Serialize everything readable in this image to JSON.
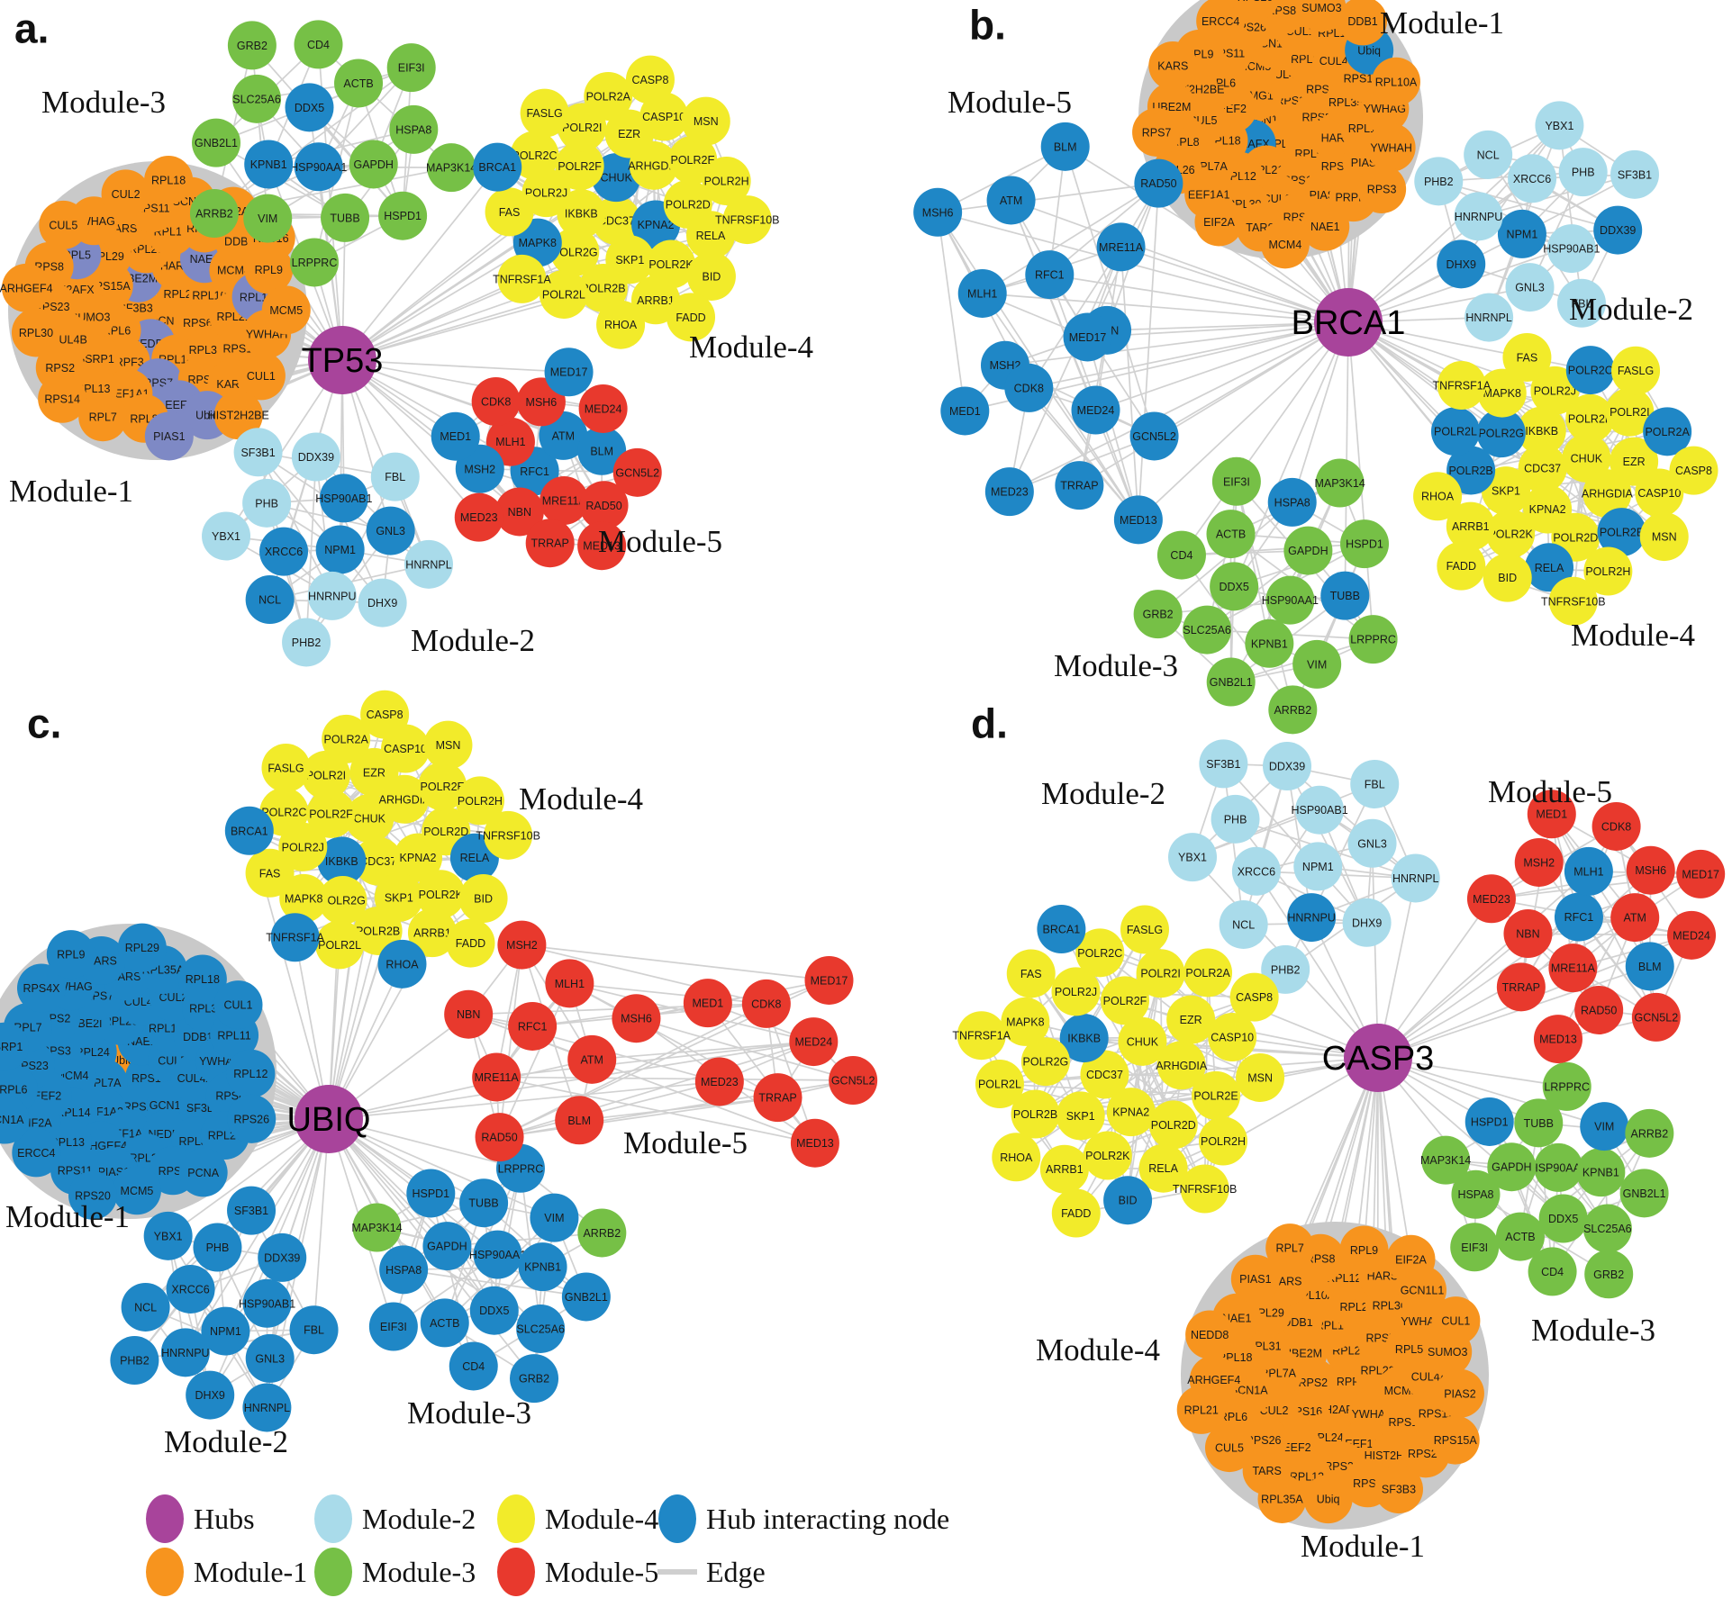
{
  "colors": {
    "hub": "#A8449B",
    "module1": "#F7941E",
    "module2": "#A9DBEA",
    "module3": "#76C046",
    "module4": "#F2EB2A",
    "module5": "#E8392D",
    "hub_interacting": "#1F87C6",
    "hub_interacting_muted": "#7E89C5",
    "edge": "#CFCFCF"
  },
  "legend": {
    "items": [
      {
        "label": "Hubs",
        "color_key": "hub",
        "swatch": "circle"
      },
      {
        "label": "Module-1",
        "color_key": "module1",
        "swatch": "circle"
      },
      {
        "label": "Module-2",
        "color_key": "module2",
        "swatch": "circle"
      },
      {
        "label": "Module-3",
        "color_key": "module3",
        "swatch": "circle"
      },
      {
        "label": "Module-4",
        "color_key": "module4",
        "swatch": "circle"
      },
      {
        "label": "Module-5",
        "color_key": "module5",
        "swatch": "circle"
      },
      {
        "label": "Hub interacting node",
        "color_key": "hub_interacting",
        "swatch": "circle"
      },
      {
        "label": "Edge",
        "color_key": "edge",
        "swatch": "line"
      }
    ]
  },
  "panels": [
    {
      "id": "a",
      "letter": "a.",
      "hub": {
        "label": "TP53"
      },
      "modules": [
        {
          "name": "Module-1",
          "color_key": "module1",
          "nodes": [
            "PCNA",
            "SF3B3",
            "RPL23",
            "NEDD8",
            "UBE2M",
            "RPS6",
            "RPL6",
            "HARS",
            "RPL14",
            "RPS15A",
            "RPL10A",
            "PRPF3",
            "RPL26",
            "RPL35A",
            "SUMO3",
            "NAE1",
            "RPS7",
            "RPL29",
            "RPL21",
            "SSRP1",
            "RPL12",
            "RPS3",
            "H2AFX",
            "MCM4",
            "EEF1A1",
            "TARS",
            "RPS13",
            "CUL4B",
            "RPS20",
            "EEF2",
            "RPL5",
            "RPL11",
            "RPL13",
            "RPS11",
            "KARS",
            "RPS23",
            "DDB1",
            "RPL8",
            "YWHAG",
            "YWHAH",
            "RPS2",
            "SCN1A",
            "Ubiq",
            "RPS8",
            "RPL9",
            "RPL7",
            "CUL2",
            "CUL1",
            "RPL30",
            "EIF2A",
            "PIAS1",
            "CUL5",
            "MCM5",
            "RPS14",
            "RPL18",
            "HIST2H2BE",
            "ARHGEF4",
            "RPS16"
          ],
          "accent": {
            "color_key": "hub_interacting_muted",
            "nodes": [
              "RPL11",
              "RPL5",
              "EEF2",
              "UBE2M",
              "NEDD8",
              "RPS7",
              "NAE1",
              "Ubiq",
              "PIAS1"
            ]
          }
        },
        {
          "name": "Module-2",
          "color_key": "module2",
          "nodes": [
            "NPM1",
            "XRCC6",
            "HSP90AB1",
            "HNRNPU",
            "PHB",
            "GNL3",
            "NCL",
            "DDX39",
            "DHX9",
            "YBX1",
            "FBL",
            "PHB2",
            "SF3B1",
            "HNRNPL"
          ],
          "accent": {
            "color_key": "hub_interacting",
            "nodes": [
              "XRCC6",
              "NPM1",
              "HSP90AB1",
              "GNL3",
              "NCL"
            ]
          }
        },
        {
          "name": "Module-3",
          "color_key": "module3",
          "nodes": [
            "HSP90AA1",
            "DDX5",
            "GAPDH",
            "KPNB1",
            "ACTB",
            "TUBB",
            "SLC25A6",
            "HSPA8",
            "VIM",
            "CD4",
            "HSPD1",
            "GNB2L1",
            "EIF3I",
            "LRPPRC",
            "GRB2",
            "MAP3K14",
            "ARRB2"
          ],
          "accent": {
            "color_key": "hub_interacting",
            "nodes": [
              "DDX5",
              "KPNB1",
              "HSP90AA1"
            ]
          }
        },
        {
          "name": "Module-4",
          "color_key": "module4",
          "nodes": [
            "CDC37",
            "CHUK",
            "KPNA2",
            "IKBKB",
            "ARHGDIA",
            "SKP1",
            "POLR2F",
            "POLR2D",
            "POLR2G",
            "EZR",
            "POLR2K",
            "POLR2J",
            "POLR2E",
            "POLR2B",
            "POLR2I",
            "RELA",
            "MAPK8",
            "CASP10",
            "ARRB1",
            "POLR2C",
            "POLR2H",
            "POLR2L",
            "POLR2A",
            "BID",
            "FAS",
            "MSN",
            "RHOA",
            "FASLG",
            "TNFRSF10B",
            "TNFRSF1A",
            "CASP8",
            "FADD",
            "BRCA1"
          ],
          "accent": {
            "color_key": "hub_interacting",
            "nodes": [
              "KPNA2",
              "CHUK",
              "MAPK8",
              "BRCA1"
            ]
          }
        },
        {
          "name": "Module-5",
          "color_key": "module5",
          "nodes": [
            "RFC1",
            "ATM",
            "MRE11A",
            "MLH1",
            "BLM",
            "NBN",
            "MSH6",
            "RAD50",
            "MSH2",
            "MED24",
            "TRRAP",
            "CDK8",
            "GCN5L2",
            "MED23",
            "MED17",
            "MED13",
            "MED1"
          ],
          "accent": {
            "color_key": "hub_interacting",
            "nodes": [
              "MSH2",
              "MED17",
              "MED1",
              "RFC1",
              "BLM",
              "ATM"
            ]
          }
        }
      ]
    },
    {
      "id": "b",
      "letter": "b.",
      "hub": {
        "label": "BRCA1"
      },
      "modules": [
        {
          "name": "Module-1",
          "color_key": "module1",
          "nodes": [
            "GCN1L1",
            "RPS14",
            "RPL14",
            "EMG1",
            "RPS2",
            "H2AFX",
            "CUL4B",
            "RPL5",
            "EEF2",
            "RPS4X",
            "RPL21",
            "MCM5",
            "HARS",
            "RPL18",
            "RPL23",
            "RPS13",
            "RPL6",
            "RPL35A",
            "RPL12",
            "SCN1A",
            "RPS23",
            "CUL5",
            "CUL4A",
            "CUL3",
            "RPS11",
            "RPL11",
            "RPL7A",
            "CUL1",
            "PIAS1",
            "HIST2H2BE",
            "RPS15A",
            "RPL30",
            "RPS26",
            "PIAS2",
            "RPL8",
            "RPL13",
            "RPS6",
            "RPL9",
            "YWHAG",
            "EEF1A1",
            "RPS8",
            "PRPF3",
            "UBE2M",
            "Ubiq",
            "TARS",
            "ERCC4",
            "YWHAH",
            "RPL26",
            "SUMO3",
            "NAE1",
            "KARS",
            "RPL10A",
            "EIF2A",
            "RPS20",
            "RPS3",
            "RPS7",
            "DDB1",
            "MCM4"
          ],
          "accent": {
            "color_key": "hub_interacting",
            "nodes": [
              "H2AFX",
              "Ubiq"
            ]
          }
        },
        {
          "name": "Module-2",
          "color_key": "module2",
          "nodes": [
            "NPM1",
            "XRCC6",
            "HSP90AB1",
            "HNRNPU",
            "PHB",
            "GNL3",
            "NCL",
            "DDX39",
            "DHX9",
            "YBX1",
            "FBL",
            "PHB2",
            "SF3B1",
            "HNRNPL"
          ],
          "accent": {
            "color_key": "hub_interacting",
            "nodes": [
              "NPM1",
              "DHX9",
              "DDX39"
            ]
          }
        },
        {
          "name": "Module-3",
          "color_key": "module3",
          "nodes": [
            "HSP90AA1",
            "DDX5",
            "GAPDH",
            "KPNB1",
            "ACTB",
            "TUBB",
            "SLC25A6",
            "HSPA8",
            "VIM",
            "CD4",
            "HSPD1",
            "GNB2L1",
            "EIF3I",
            "LRPPRC",
            "GRB2",
            "MAP3K14",
            "ARRB2"
          ],
          "accent": {
            "color_key": "hub_interacting",
            "nodes": [
              "TUBB",
              "HSPA8"
            ]
          }
        },
        {
          "name": "Module-4",
          "color_key": "module4",
          "nodes": [
            "CDC37",
            "CHUK",
            "KPNA2",
            "IKBKB",
            "ARHGDIA",
            "SKP1",
            "POLR2F",
            "POLR2D",
            "POLR2G",
            "EZR",
            "POLR2K",
            "POLR2J",
            "POLR2E",
            "POLR2B",
            "POLR2I",
            "RELA",
            "MAPK8",
            "CASP10",
            "ARRB1",
            "POLR2C",
            "POLR2H",
            "POLR2L",
            "POLR2A",
            "BID",
            "FAS",
            "MSN",
            "RHOA",
            "FASLG",
            "TNFRSF10B",
            "TNFRSF1A",
            "CASP8",
            "FADD"
          ],
          "accent": {
            "color_key": "hub_interacting",
            "nodes": [
              "POLR2A",
              "POLR2B",
              "POLR2C",
              "POLR2L",
              "POLR2E",
              "POLR2G",
              "RELA"
            ]
          }
        },
        {
          "name": "Module-5",
          "color_key": "hub_interacting",
          "nodes": [
            "RFC1",
            "ATM",
            "MRE11A",
            "MLH1",
            "BLM",
            "NBN",
            "MSH6",
            "RAD50",
            "MSH2",
            "MED24",
            "TRRAP",
            "CDK8",
            "GCN5L2",
            "MED23",
            "MED17",
            "MED13",
            "MED1"
          ]
        }
      ]
    },
    {
      "id": "c",
      "letter": "c.",
      "hub": {
        "label": "UBIQ"
      },
      "modules": [
        {
          "name": "Module-1",
          "color_key": "hub_interacting",
          "nodes": [
            "Ubiq",
            "RPS16",
            "RPL7A",
            "NAE1",
            "RPS13",
            "RPL24",
            "CUL5",
            "EEF1A2",
            "RPL26",
            "GCN1L1",
            "MCM4",
            "RPL10A",
            "EEF1A1",
            "UBE2I",
            "CUL4A",
            "RPL14",
            "CUL4B",
            "NEDD8",
            "RPS3",
            "DDB1",
            "ARHGEF4",
            "RPS7",
            "SF3B3",
            "EEF2",
            "CUL2",
            "RPL23",
            "RPS2",
            "YWHAH",
            "RPL13",
            "TARS",
            "RPL30",
            "RPS23",
            "RPL31",
            "PIAS1",
            "YWHAG",
            "RPS8",
            "EIF2A",
            "RPL35A",
            "RPS6",
            "RPL7",
            "RPL11",
            "RPS11",
            "HARS",
            "RPL27",
            "RPL6",
            "RPL18",
            "MCM5",
            "RPS4X",
            "RPL12",
            "ERCC4",
            "RPL29",
            "PCNA",
            "SSRP1",
            "CUL1",
            "RPS20",
            "RPL9",
            "RPS26",
            "SCN1A"
          ],
          "accent": {
            "color_key": "module1",
            "nodes": [
              "Ubiq"
            ]
          }
        },
        {
          "name": "Module-2",
          "color_key": "hub_interacting",
          "nodes": [
            "NPM1",
            "XRCC6",
            "HSP90AB1",
            "HNRNPU",
            "PHB",
            "GNL3",
            "NCL",
            "DDX39",
            "DHX9",
            "YBX1",
            "FBL",
            "PHB2",
            "SF3B1",
            "HNRNPL"
          ]
        },
        {
          "name": "Module-3",
          "color_key": "hub_interacting",
          "nodes": [
            "HSP90AA1",
            "DDX5",
            "GAPDH",
            "KPNB1",
            "ACTB",
            "TUBB",
            "SLC25A6",
            "HSPA8",
            "VIM",
            "CD4",
            "HSPD1",
            "GNB2L1",
            "EIF3I",
            "LRPPRC",
            "GRB2",
            "MAP3K14",
            "ARRB2"
          ],
          "accent": {
            "color_key": "module3",
            "nodes": [
              "ARRB2",
              "MAP3K14"
            ]
          }
        },
        {
          "name": "Module-4",
          "color_key": "module4",
          "nodes": [
            "CDC37",
            "CHUK",
            "KPNA2",
            "IKBKB",
            "ARHGDIA",
            "SKP1",
            "POLR2F",
            "POLR2D",
            "POLR2G",
            "EZR",
            "POLR2K",
            "POLR2J",
            "POLR2E",
            "POLR2B",
            "POLR2I",
            "RELA",
            "MAPK8",
            "CASP10",
            "ARRB1",
            "POLR2C",
            "POLR2H",
            "POLR2L",
            "POLR2A",
            "BID",
            "FAS",
            "MSN",
            "RHOA",
            "FASLG",
            "TNFRSF10B",
            "TNFRSF1A",
            "CASP8",
            "FADD",
            "BRCA1"
          ],
          "accent": {
            "color_key": "hub_interacting",
            "nodes": [
              "BRCA1",
              "IKBKB",
              "RELA",
              "TNFRSF1A",
              "RHOA"
            ]
          }
        },
        {
          "name": "Module-5",
          "color_key": "module5",
          "nodes": [
            "RFC1",
            "ATM",
            "MRE11A",
            "MLH1",
            "BLM",
            "NBN",
            "MSH6",
            "RAD50",
            "MSH2",
            "MED24",
            "TRRAP",
            "CDK8",
            "GCN5L2",
            "MED23",
            "MED17",
            "MED13",
            "MED1"
          ]
        }
      ]
    },
    {
      "id": "d",
      "letter": "d.",
      "hub": {
        "label": "CASP3"
      },
      "modules": [
        {
          "name": "Module-1",
          "color_key": "module1",
          "nodes": [
            "PRPF3",
            "RPS2",
            "RPL27",
            "H2AFX",
            "UBE2M",
            "RPL23",
            "RPS16",
            "RPL14",
            "YWHAH",
            "RPL7A",
            "RPS7",
            "RPL24",
            "DDB1",
            "MCM5",
            "CUL2",
            "RPL26",
            "EEF1A2",
            "RPL31",
            "RPL5",
            "EEF2",
            "RPL10A",
            "RPS13",
            "SCN1A",
            "RPL30",
            "RPS23",
            "RPL29",
            "CUL4A",
            "RPS26",
            "RPL12",
            "HIST2H2BE",
            "RPL18",
            "YWHAG",
            "RPL13",
            "KARS",
            "RPS11",
            "RPL6",
            "HARS",
            "RPS6",
            "NAE1",
            "SUMO3",
            "TARS",
            "RPS8",
            "RPS20",
            "ARHGEF4",
            "GCN1L1",
            "Ubiq",
            "PIAS1",
            "PIAS2",
            "CUL5",
            "RPL9",
            "SF3B3",
            "NEDD8",
            "CUL1",
            "RPL35A",
            "RPL7",
            "RPS15A",
            "RPL21",
            "EIF2A"
          ]
        },
        {
          "name": "Module-2",
          "color_key": "module2",
          "nodes": [
            "NPM1",
            "XRCC6",
            "HSP90AB1",
            "HNRNPU",
            "PHB",
            "GNL3",
            "NCL",
            "DDX39",
            "DHX9",
            "YBX1",
            "FBL",
            "PHB2",
            "SF3B1",
            "HNRNPL"
          ],
          "accent": {
            "color_key": "hub_interacting",
            "nodes": [
              "HNRNPU"
            ]
          }
        },
        {
          "name": "Module-3",
          "color_key": "module3",
          "nodes": [
            "HSP90AA1",
            "DDX5",
            "GAPDH",
            "KPNB1",
            "ACTB",
            "TUBB",
            "SLC25A6",
            "HSPA8",
            "VIM",
            "CD4",
            "HSPD1",
            "GNB2L1",
            "EIF3I",
            "LRPPRC",
            "GRB2",
            "MAP3K14",
            "ARRB2"
          ],
          "accent": {
            "color_key": "hub_interacting",
            "nodes": [
              "VIM",
              "HSPD1"
            ]
          }
        },
        {
          "name": "Module-4",
          "color_key": "module4",
          "nodes": [
            "CDC37",
            "CHUK",
            "KPNA2",
            "IKBKB",
            "ARHGDIA",
            "SKP1",
            "POLR2F",
            "POLR2D",
            "POLR2G",
            "EZR",
            "POLR2K",
            "POLR2J",
            "POLR2E",
            "POLR2B",
            "POLR2I",
            "RELA",
            "MAPK8",
            "CASP10",
            "ARRB1",
            "POLR2C",
            "POLR2H",
            "POLR2L",
            "POLR2A",
            "BID",
            "FAS",
            "MSN",
            "RHOA",
            "FASLG",
            "TNFRSF10B",
            "TNFRSF1A",
            "CASP8",
            "FADD",
            "BRCA1"
          ],
          "accent": {
            "color_key": "hub_interacting",
            "nodes": [
              "BRCA1",
              "IKBKB",
              "BID"
            ]
          }
        },
        {
          "name": "Module-5",
          "color_key": "module5",
          "nodes": [
            "RFC1",
            "ATM",
            "MRE11A",
            "MLH1",
            "BLM",
            "NBN",
            "MSH6",
            "RAD50",
            "MSH2",
            "MED24",
            "TRRAP",
            "CDK8",
            "GCN5L2",
            "MED23",
            "MED17",
            "MED13",
            "MED1"
          ],
          "accent": {
            "color_key": "hub_interacting",
            "nodes": [
              "RFC1",
              "MLH1",
              "BLM"
            ]
          }
        }
      ]
    }
  ]
}
